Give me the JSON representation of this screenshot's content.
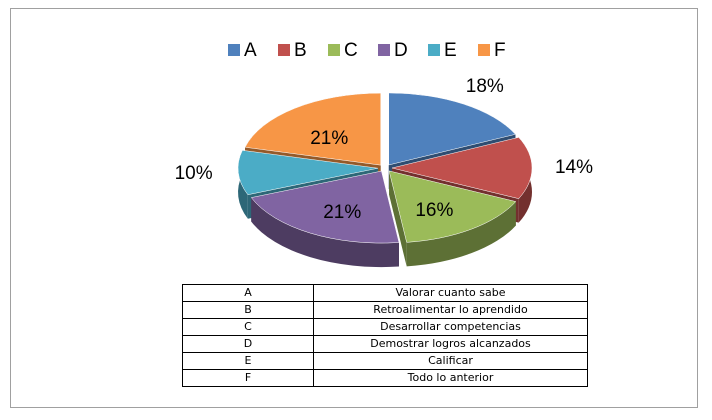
{
  "chart_data": {
    "type": "pie",
    "categories": [
      "A",
      "B",
      "C",
      "D",
      "E",
      "F"
    ],
    "values": [
      18,
      14,
      16,
      21,
      10,
      21
    ],
    "value_labels": [
      "18%",
      "14%",
      "16%",
      "21%",
      "10%",
      "21%"
    ],
    "colors": [
      "#4f81bd",
      "#c0504d",
      "#9bbb59",
      "#8064a2",
      "#4bacc6",
      "#f79646"
    ],
    "legend": "top"
  },
  "table": {
    "rows": [
      [
        "A",
        "Valorar cuanto sabe"
      ],
      [
        "B",
        "Retroalimentar lo aprendido"
      ],
      [
        "C",
        "Desarrollar competencias"
      ],
      [
        "D",
        "Demostrar logros alcanzados"
      ],
      [
        "E",
        "Calificar"
      ],
      [
        "F",
        "Todo lo anterior"
      ]
    ]
  }
}
